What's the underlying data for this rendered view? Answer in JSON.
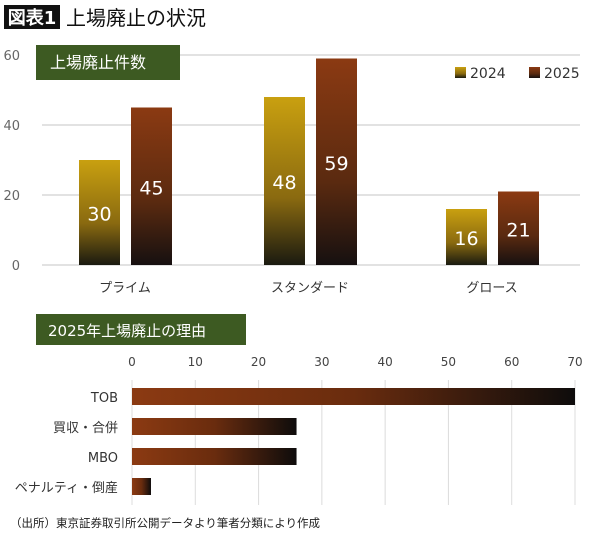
{
  "header": {
    "badge": "図表1",
    "title": "上場廃止の状況"
  },
  "source_note": "（出所）東京証券取引所公開データより筆者分類により作成",
  "colors": {
    "title_box": "#3d5a22",
    "gold": "#c9a010",
    "brown": "#8b3a12",
    "dark": "#111111"
  },
  "chart_data": [
    {
      "type": "bar",
      "title": "上場廃止件数",
      "categories": [
        "プライム",
        "スタンダード",
        "グロース"
      ],
      "series": [
        {
          "name": "2024",
          "values": [
            30,
            48,
            16
          ]
        },
        {
          "name": "2025",
          "values": [
            45,
            59,
            21
          ]
        }
      ],
      "ylim": [
        0,
        60
      ],
      "yticks": [
        "0",
        "20",
        "40",
        "60"
      ],
      "grid": true,
      "legend": "top-right"
    },
    {
      "type": "bar",
      "orientation": "horizontal",
      "title": "2025年上場廃止の理由",
      "categories": [
        "TOB",
        "買収・合併",
        "MBO",
        "ペナルティ・倒産"
      ],
      "values": [
        70,
        26,
        26,
        3
      ],
      "xlim": [
        0,
        70
      ],
      "xticks": [
        "0",
        "10",
        "20",
        "30",
        "40",
        "50",
        "60",
        "70"
      ],
      "grid": true
    }
  ]
}
